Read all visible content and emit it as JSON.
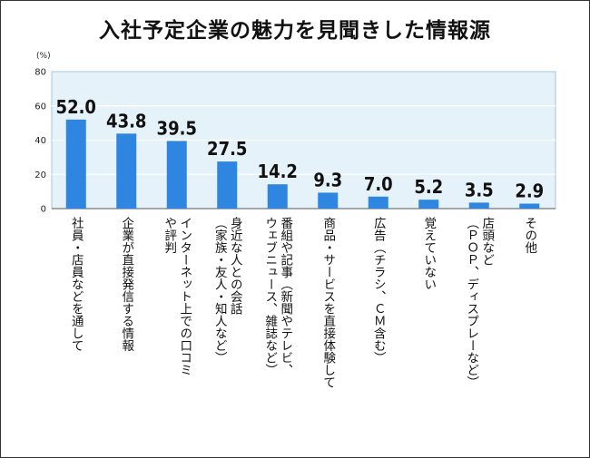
{
  "chart_data": {
    "type": "bar",
    "title": "入社予定企業の魅力を見聞きした情報源",
    "unit": "(%)",
    "ylim": [
      0,
      80
    ],
    "yticks": [
      0,
      20,
      40,
      60,
      80
    ],
    "grid": true,
    "categories": [
      "社員・店員などを通して",
      "企業が直接発信する情報",
      "インターネット上での口コミや評判",
      "身近な人との会話（家族・友人・知人など）",
      "番組や記事（新聞やテレビ、ウェブニュース、雑誌など）",
      "商品・サービスを直接体験して",
      "広告（チラシ、ＣＭ含む）",
      "覚えていない",
      "店頭など（ＰＯＰ、ディスプレーなど）",
      "その他"
    ],
    "label_columns": [
      [
        "社員・店員などを通して"
      ],
      [
        "企業が直接発信する情報"
      ],
      [
        "インターネット上での口コミ",
        "や評判"
      ],
      [
        "身近な人との会話",
        "（家族・友人・知人など）"
      ],
      [
        "番組や記事（新聞やテレビ、",
        "ウェブニュース、雑誌など）"
      ],
      [
        "商品・サービスを直接体験して"
      ],
      [
        "広告（チラシ、ＣＭ含む）"
      ],
      [
        "覚えていない"
      ],
      [
        "店頭など",
        "（ＰＯＰ、ディスプレーなど）"
      ],
      [
        "その他"
      ]
    ],
    "values": [
      52.0,
      43.8,
      39.5,
      27.5,
      14.2,
      9.3,
      7.0,
      5.2,
      3.5,
      2.9
    ],
    "value_labels": [
      "52.0",
      "43.8",
      "39.5",
      "27.5",
      "14.2",
      "9.3",
      "7.0",
      "5.2",
      "3.5",
      "2.9"
    ],
    "bar_color": "#2f86e0",
    "plot_background": "#e6f2f9"
  }
}
